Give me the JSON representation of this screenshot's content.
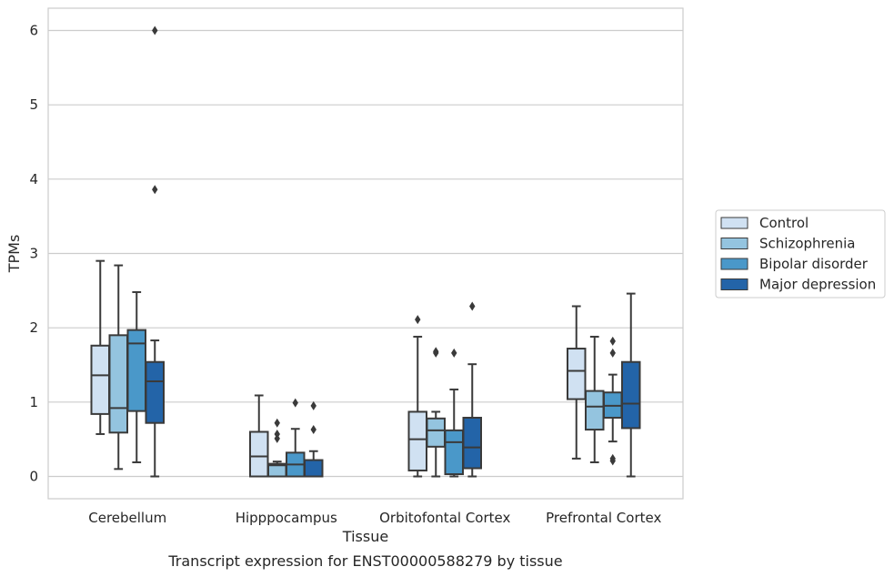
{
  "chart_data": {
    "type": "box",
    "title": "",
    "caption": "Transcript expression for ENST00000588279 by tissue",
    "xlabel": "Tissue",
    "ylabel": "TPMs",
    "ylim": [
      -0.3,
      6.3
    ],
    "yticks": [
      0,
      1,
      2,
      3,
      4,
      5,
      6
    ],
    "grid": "horizontal",
    "legend_position": "right",
    "categories": [
      "Cerebellum",
      "Hipppocampus",
      "Orbitofontal Cortex",
      "Prefrontal Cortex"
    ],
    "series": [
      {
        "name": "Control",
        "color": "#d0e1f2",
        "boxes": [
          {
            "whisker_low": 0.57,
            "q1": 0.84,
            "median": 1.36,
            "q3": 1.76,
            "whisker_high": 2.9,
            "outliers": []
          },
          {
            "whisker_low": 0.0,
            "q1": 0.0,
            "median": 0.27,
            "q3": 0.6,
            "whisker_high": 1.09,
            "outliers": []
          },
          {
            "whisker_low": 0.0,
            "q1": 0.08,
            "median": 0.5,
            "q3": 0.87,
            "whisker_high": 1.88,
            "outliers": [
              2.11
            ]
          },
          {
            "whisker_low": 0.24,
            "q1": 1.04,
            "median": 1.42,
            "q3": 1.72,
            "whisker_high": 2.29,
            "outliers": []
          }
        ]
      },
      {
        "name": "Schizophrenia",
        "color": "#94c4df",
        "boxes": [
          {
            "whisker_low": 0.1,
            "q1": 0.59,
            "median": 0.92,
            "q3": 1.9,
            "whisker_high": 2.84,
            "outliers": []
          },
          {
            "whisker_low": 0.0,
            "q1": 0.0,
            "median": 0.15,
            "q3": 0.17,
            "whisker_high": 0.2,
            "outliers": [
              0.51,
              0.57,
              0.72
            ]
          },
          {
            "whisker_low": 0.0,
            "q1": 0.4,
            "median": 0.62,
            "q3": 0.78,
            "whisker_high": 0.87,
            "outliers": [
              1.66,
              1.68
            ]
          },
          {
            "whisker_low": 0.19,
            "q1": 0.63,
            "median": 0.94,
            "q3": 1.15,
            "whisker_high": 1.88,
            "outliers": []
          }
        ]
      },
      {
        "name": "Bipolar disorder",
        "color": "#4a98c9",
        "boxes": [
          {
            "whisker_low": 0.19,
            "q1": 0.88,
            "median": 1.79,
            "q3": 1.97,
            "whisker_high": 2.48,
            "outliers": []
          },
          {
            "whisker_low": 0.0,
            "q1": 0.0,
            "median": 0.16,
            "q3": 0.32,
            "whisker_high": 0.64,
            "outliers": [
              0.99
            ]
          },
          {
            "whisker_low": 0.0,
            "q1": 0.03,
            "median": 0.46,
            "q3": 0.62,
            "whisker_high": 1.17,
            "outliers": [
              1.66
            ]
          },
          {
            "whisker_low": 0.47,
            "q1": 0.79,
            "median": 0.95,
            "q3": 1.13,
            "whisker_high": 1.37,
            "outliers": [
              0.21,
              0.24,
              1.66,
              1.82
            ]
          }
        ]
      },
      {
        "name": "Major depression",
        "color": "#2364a8",
        "boxes": [
          {
            "whisker_low": 0.0,
            "q1": 0.72,
            "median": 1.28,
            "q3": 1.54,
            "whisker_high": 1.83,
            "outliers": [
              3.86,
              6.0
            ]
          },
          {
            "whisker_low": 0.0,
            "q1": 0.0,
            "median": 0.0,
            "q3": 0.22,
            "whisker_high": 0.34,
            "outliers": [
              0.63,
              0.95
            ]
          },
          {
            "whisker_low": 0.0,
            "q1": 0.11,
            "median": 0.39,
            "q3": 0.79,
            "whisker_high": 1.51,
            "outliers": [
              2.29
            ]
          },
          {
            "whisker_low": 0.0,
            "q1": 0.65,
            "median": 0.98,
            "q3": 1.54,
            "whisker_high": 2.46,
            "outliers": []
          }
        ]
      }
    ]
  }
}
